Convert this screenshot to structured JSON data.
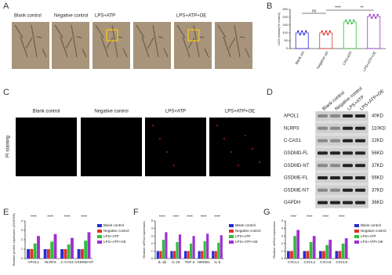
{
  "panel_labels": [
    "A",
    "B",
    "C",
    "D",
    "E",
    "F",
    "G"
  ],
  "microscopy": {
    "captions": [
      "Blank control",
      "Negative control",
      "LPS+ATP",
      "LPS+ATP+OE"
    ]
  },
  "pi_staining": {
    "label": "PI staining",
    "captions": [
      "Blank control",
      "Negative control",
      "LPS+ATP",
      "LPS+ATP+OE"
    ]
  },
  "western_blot": {
    "columns": [
      "Blank control",
      "Negative control",
      "LPS+ATP",
      "LPS+ATP+OE"
    ],
    "rows": [
      {
        "label": "APOL1",
        "size": "40KD"
      },
      {
        "label": "NLRP3",
        "size": "110KD"
      },
      {
        "label": "C-CAS1",
        "size": "22KD"
      },
      {
        "label": "GSDMD-FL",
        "size": "56KD"
      },
      {
        "label": "GSDMD-NT",
        "size": "37KD"
      },
      {
        "label": "GSDME-FL",
        "size": "56KD"
      },
      {
        "label": "GSDME-NT",
        "size": "37KD"
      },
      {
        "label": "GAPDH",
        "size": "36KD"
      }
    ]
  },
  "chart_data": [
    {
      "type": "bar",
      "ylabel": "LDH release(% control)",
      "categories": [
        "Blank ctrl",
        "Negative ctrl",
        "LPS+ATP",
        "LPS+ATP+OE"
      ],
      "values": [
        100,
        100,
        170,
        205
      ],
      "colors": [
        "#2b2bd6",
        "#e0302a",
        "#2fbf3a",
        "#a030d0"
      ],
      "ylim": [
        0,
        250
      ],
      "yticks": [
        0,
        50,
        100,
        150,
        200,
        250
      ],
      "annotations": [
        "ns",
        "****",
        "**"
      ]
    },
    {
      "type": "grouped_bar",
      "ylabel": "Relative protein expression (/GAPDH)",
      "categories": [
        "APOL1",
        "NLRP3",
        "C-CAS1",
        "GSDMD-NT"
      ],
      "series": [
        {
          "name": "Blank control",
          "color": "#2b2bd6",
          "values": [
            1,
            1,
            1,
            1
          ]
        },
        {
          "name": "Negative control",
          "color": "#e0302a",
          "values": [
            1,
            1,
            1,
            1
          ]
        },
        {
          "name": "LPS+ATP",
          "color": "#2fbf3a",
          "values": [
            1.6,
            1.8,
            1.5,
            1.9
          ]
        },
        {
          "name": "LPS+ATP+OE",
          "color": "#a030d0",
          "values": [
            2.4,
            2.6,
            2.2,
            2.8
          ]
        }
      ],
      "ylim": [
        0,
        4
      ],
      "yticks": [
        0,
        1,
        2,
        3,
        4
      ],
      "annotations": [
        "****",
        "****",
        "****",
        "****"
      ]
    },
    {
      "type": "grouped_bar",
      "ylabel": "Relative mRNA expression",
      "categories": [
        "IL-1β",
        "IL-18",
        "TNF-α",
        "HMGB1",
        "IL-6"
      ],
      "series": [
        {
          "name": "Blank control",
          "color": "#2b2bd6",
          "values": [
            1,
            1,
            1,
            1,
            1
          ]
        },
        {
          "name": "Negative control",
          "color": "#e0302a",
          "values": [
            1,
            1,
            1,
            1,
            1
          ]
        },
        {
          "name": "LPS+ATP",
          "color": "#2fbf3a",
          "values": [
            2.5,
            2.2,
            2.0,
            2.3,
            2.1
          ]
        },
        {
          "name": "LPS+ATP+OE",
          "color": "#a030d0",
          "values": [
            3.5,
            3.2,
            3.0,
            3.3,
            3.1
          ]
        }
      ],
      "ylim": [
        0,
        5
      ],
      "yticks": [
        0,
        1,
        2,
        3,
        4,
        5
      ],
      "annotations": [
        "****",
        "****",
        "****",
        "****",
        "****"
      ]
    },
    {
      "type": "grouped_bar",
      "ylabel": "Relative mRNA expression",
      "categories": [
        "CXCL1",
        "CXCL2",
        "CXCL8",
        "CXCL9"
      ],
      "series": [
        {
          "name": "Blank control",
          "color": "#2b2bd6",
          "values": [
            1,
            1,
            1,
            1
          ]
        },
        {
          "name": "Negative control",
          "color": "#e0302a",
          "values": [
            1,
            1,
            1,
            1
          ]
        },
        {
          "name": "LPS+ATP",
          "color": "#2fbf3a",
          "values": [
            3,
            2.2,
            1.8,
            2
          ]
        },
        {
          "name": "LPS+ATP+OE",
          "color": "#a030d0",
          "values": [
            3.8,
            3,
            2.5,
            2.7
          ]
        }
      ],
      "ylim": [
        0,
        5
      ],
      "yticks": [
        0,
        1,
        2,
        3,
        4,
        5
      ],
      "annotations": [
        "****",
        "****",
        "****",
        "****"
      ]
    }
  ]
}
